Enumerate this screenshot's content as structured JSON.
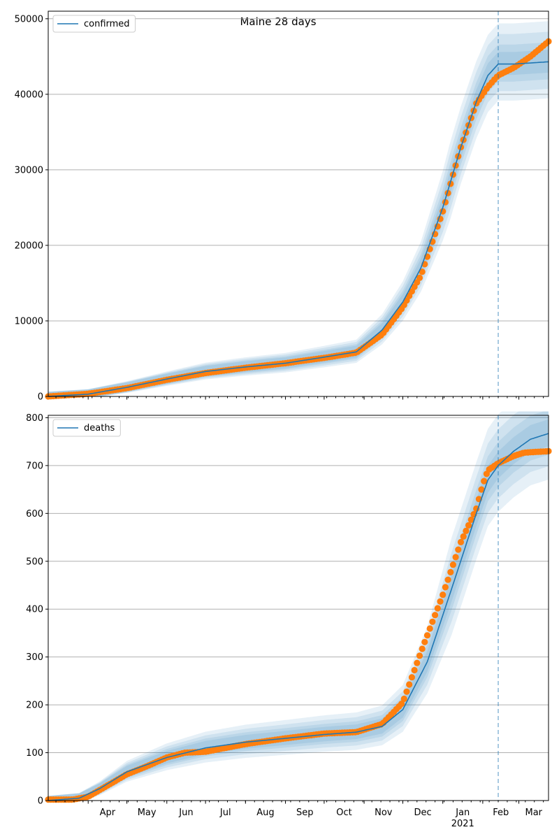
{
  "figure": {
    "title": "Maine 28 days"
  },
  "colors": {
    "model_line": "#1f77b4",
    "band": "#1f77b4",
    "observed": "#ff7f0e",
    "grid": "#b0b0b0",
    "forecast_line": "#1f77b4"
  },
  "x_axis": {
    "month_labels": [
      "Apr",
      "May",
      "Jun",
      "Jul",
      "Aug",
      "Sep",
      "Oct",
      "Nov",
      "Dec",
      "Jan",
      "Feb",
      "Mar"
    ],
    "month_days": [
      31,
      61,
      92,
      122,
      153,
      184,
      214,
      245,
      275,
      306,
      337,
      365
    ],
    "year_label": "2021",
    "start_date": "2020-03-01",
    "end_date": "2021-03-24",
    "forecast_date": "2021-02-13"
  },
  "chart_data": [
    {
      "type": "line",
      "legend": "confirmed",
      "legend_position": "top-left",
      "grid": "horizontal",
      "ylim": [
        0,
        51000
      ],
      "yticks": [
        0,
        10000,
        20000,
        30000,
        40000,
        50000
      ],
      "ytick_labels": [
        "0",
        "10000",
        "20000",
        "30000",
        "40000",
        "50000"
      ],
      "model": {
        "x": [
          "2020-03-01",
          "2020-04-01",
          "2020-05-01",
          "2020-06-01",
          "2020-07-01",
          "2020-08-01",
          "2020-09-01",
          "2020-10-01",
          "2020-10-26",
          "2020-11-15",
          "2020-12-01",
          "2020-12-15",
          "2021-01-01",
          "2021-01-15",
          "2021-01-27",
          "2021-02-05",
          "2021-02-13",
          "2021-02-25",
          "2021-03-24"
        ],
        "y": [
          0,
          300,
          1200,
          2300,
          3300,
          3900,
          4400,
          5200,
          5900,
          8800,
          12500,
          17000,
          25000,
          33000,
          39000,
          42500,
          44000,
          44000,
          44300
        ]
      },
      "band_widths": [
        {
          "level": "outer",
          "fraction": 0.17
        },
        {
          "level": "middle",
          "fraction": 0.12
        },
        {
          "level": "inner",
          "fraction": 0.07
        },
        {
          "level": "core",
          "fraction": 0.035
        }
      ],
      "observed": {
        "x": [
          "2020-03-01",
          "2020-04-01",
          "2020-05-01",
          "2020-06-01",
          "2020-07-01",
          "2020-08-01",
          "2020-09-01",
          "2020-10-01",
          "2020-10-26",
          "2020-11-15",
          "2020-12-01",
          "2020-12-15",
          "2021-01-01",
          "2021-01-15",
          "2021-01-27",
          "2021-02-05",
          "2021-02-13",
          "2021-02-25",
          "2021-03-10",
          "2021-03-24"
        ],
        "y": [
          0,
          350,
          1100,
          2200,
          3100,
          3800,
          4400,
          5100,
          5800,
          8200,
          11800,
          16000,
          24500,
          33000,
          38800,
          41000,
          42500,
          43500,
          45000,
          47000
        ]
      }
    },
    {
      "type": "line",
      "legend": "deaths",
      "legend_position": "top-left",
      "grid": "horizontal",
      "ylim": [
        0,
        805
      ],
      "yticks": [
        0,
        100,
        200,
        300,
        400,
        500,
        600,
        700,
        800
      ],
      "ytick_labels": [
        "0",
        "100",
        "200",
        "300",
        "400",
        "500",
        "600",
        "700",
        "800"
      ],
      "model": {
        "x": [
          "2020-03-01",
          "2020-03-25",
          "2020-04-10",
          "2020-05-01",
          "2020-06-01",
          "2020-07-01",
          "2020-08-01",
          "2020-09-01",
          "2020-10-01",
          "2020-10-26",
          "2020-11-15",
          "2020-12-01",
          "2020-12-20",
          "2021-01-10",
          "2021-01-27",
          "2021-02-05",
          "2021-02-13",
          "2021-02-25",
          "2021-03-10",
          "2021-03-24"
        ],
        "y": [
          0,
          5,
          25,
          60,
          90,
          110,
          122,
          130,
          138,
          143,
          155,
          190,
          290,
          460,
          600,
          670,
          700,
          730,
          755,
          767
        ]
      },
      "band_widths": [
        {
          "level": "outer",
          "fraction": 0.22
        },
        {
          "level": "middle",
          "fraction": 0.15
        },
        {
          "level": "inner",
          "fraction": 0.09
        },
        {
          "level": "core",
          "fraction": 0.045
        }
      ],
      "observed": {
        "x": [
          "2020-03-01",
          "2020-03-20",
          "2020-04-01",
          "2020-04-15",
          "2020-05-01",
          "2020-05-15",
          "2020-06-01",
          "2020-06-15",
          "2020-07-01",
          "2020-08-01",
          "2020-09-01",
          "2020-10-01",
          "2020-10-26",
          "2020-11-15",
          "2020-12-01",
          "2020-12-15",
          "2021-01-01",
          "2021-01-15",
          "2021-01-27",
          "2021-02-01",
          "2021-02-05",
          "2021-02-13",
          "2021-02-25",
          "2021-03-05",
          "2021-03-24"
        ],
        "y": [
          2,
          2,
          8,
          30,
          55,
          70,
          90,
          100,
          102,
          118,
          130,
          140,
          143,
          160,
          205,
          310,
          430,
          540,
          610,
          660,
          690,
          705,
          720,
          727,
          730
        ]
      }
    }
  ]
}
